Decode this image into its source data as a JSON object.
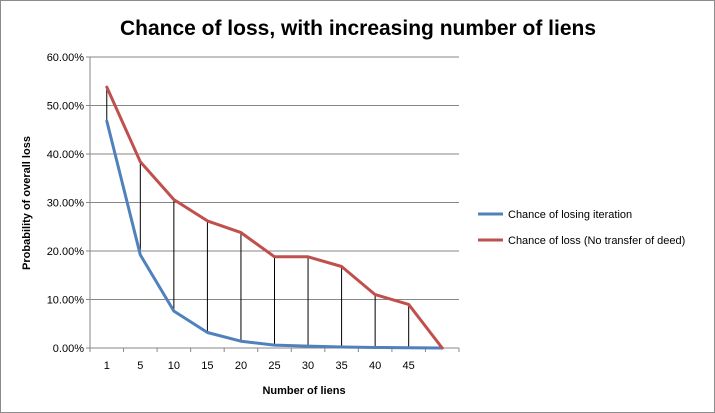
{
  "chart_data": {
    "type": "line",
    "title": "Chance of loss, with increasing number of liens",
    "xlabel": "Number of liens",
    "ylabel": "Probability of overall loss",
    "categories": [
      "1",
      "5",
      "10",
      "15",
      "20",
      "25",
      "30",
      "35",
      "40",
      "45",
      ""
    ],
    "ylim": [
      0,
      0.6
    ],
    "yticks": [
      "0.00%",
      "10.00%",
      "20.00%",
      "30.00%",
      "40.00%",
      "50.00%",
      "60.00%"
    ],
    "grid": true,
    "drop_lines": true,
    "legend_position": "right",
    "series": [
      {
        "name": "Chance of losing iteration",
        "color": "#4f81bd",
        "values": [
          0.468,
          0.192,
          0.076,
          0.032,
          0.014,
          0.006,
          0.004,
          0.002,
          0.001,
          0.0005,
          0.0
        ]
      },
      {
        "name": "Chance of loss (No transfer of deed)",
        "color": "#c0504d",
        "values": [
          0.538,
          0.384,
          0.306,
          0.262,
          0.238,
          0.188,
          0.188,
          0.168,
          0.11,
          0.09,
          0.0
        ]
      }
    ]
  }
}
